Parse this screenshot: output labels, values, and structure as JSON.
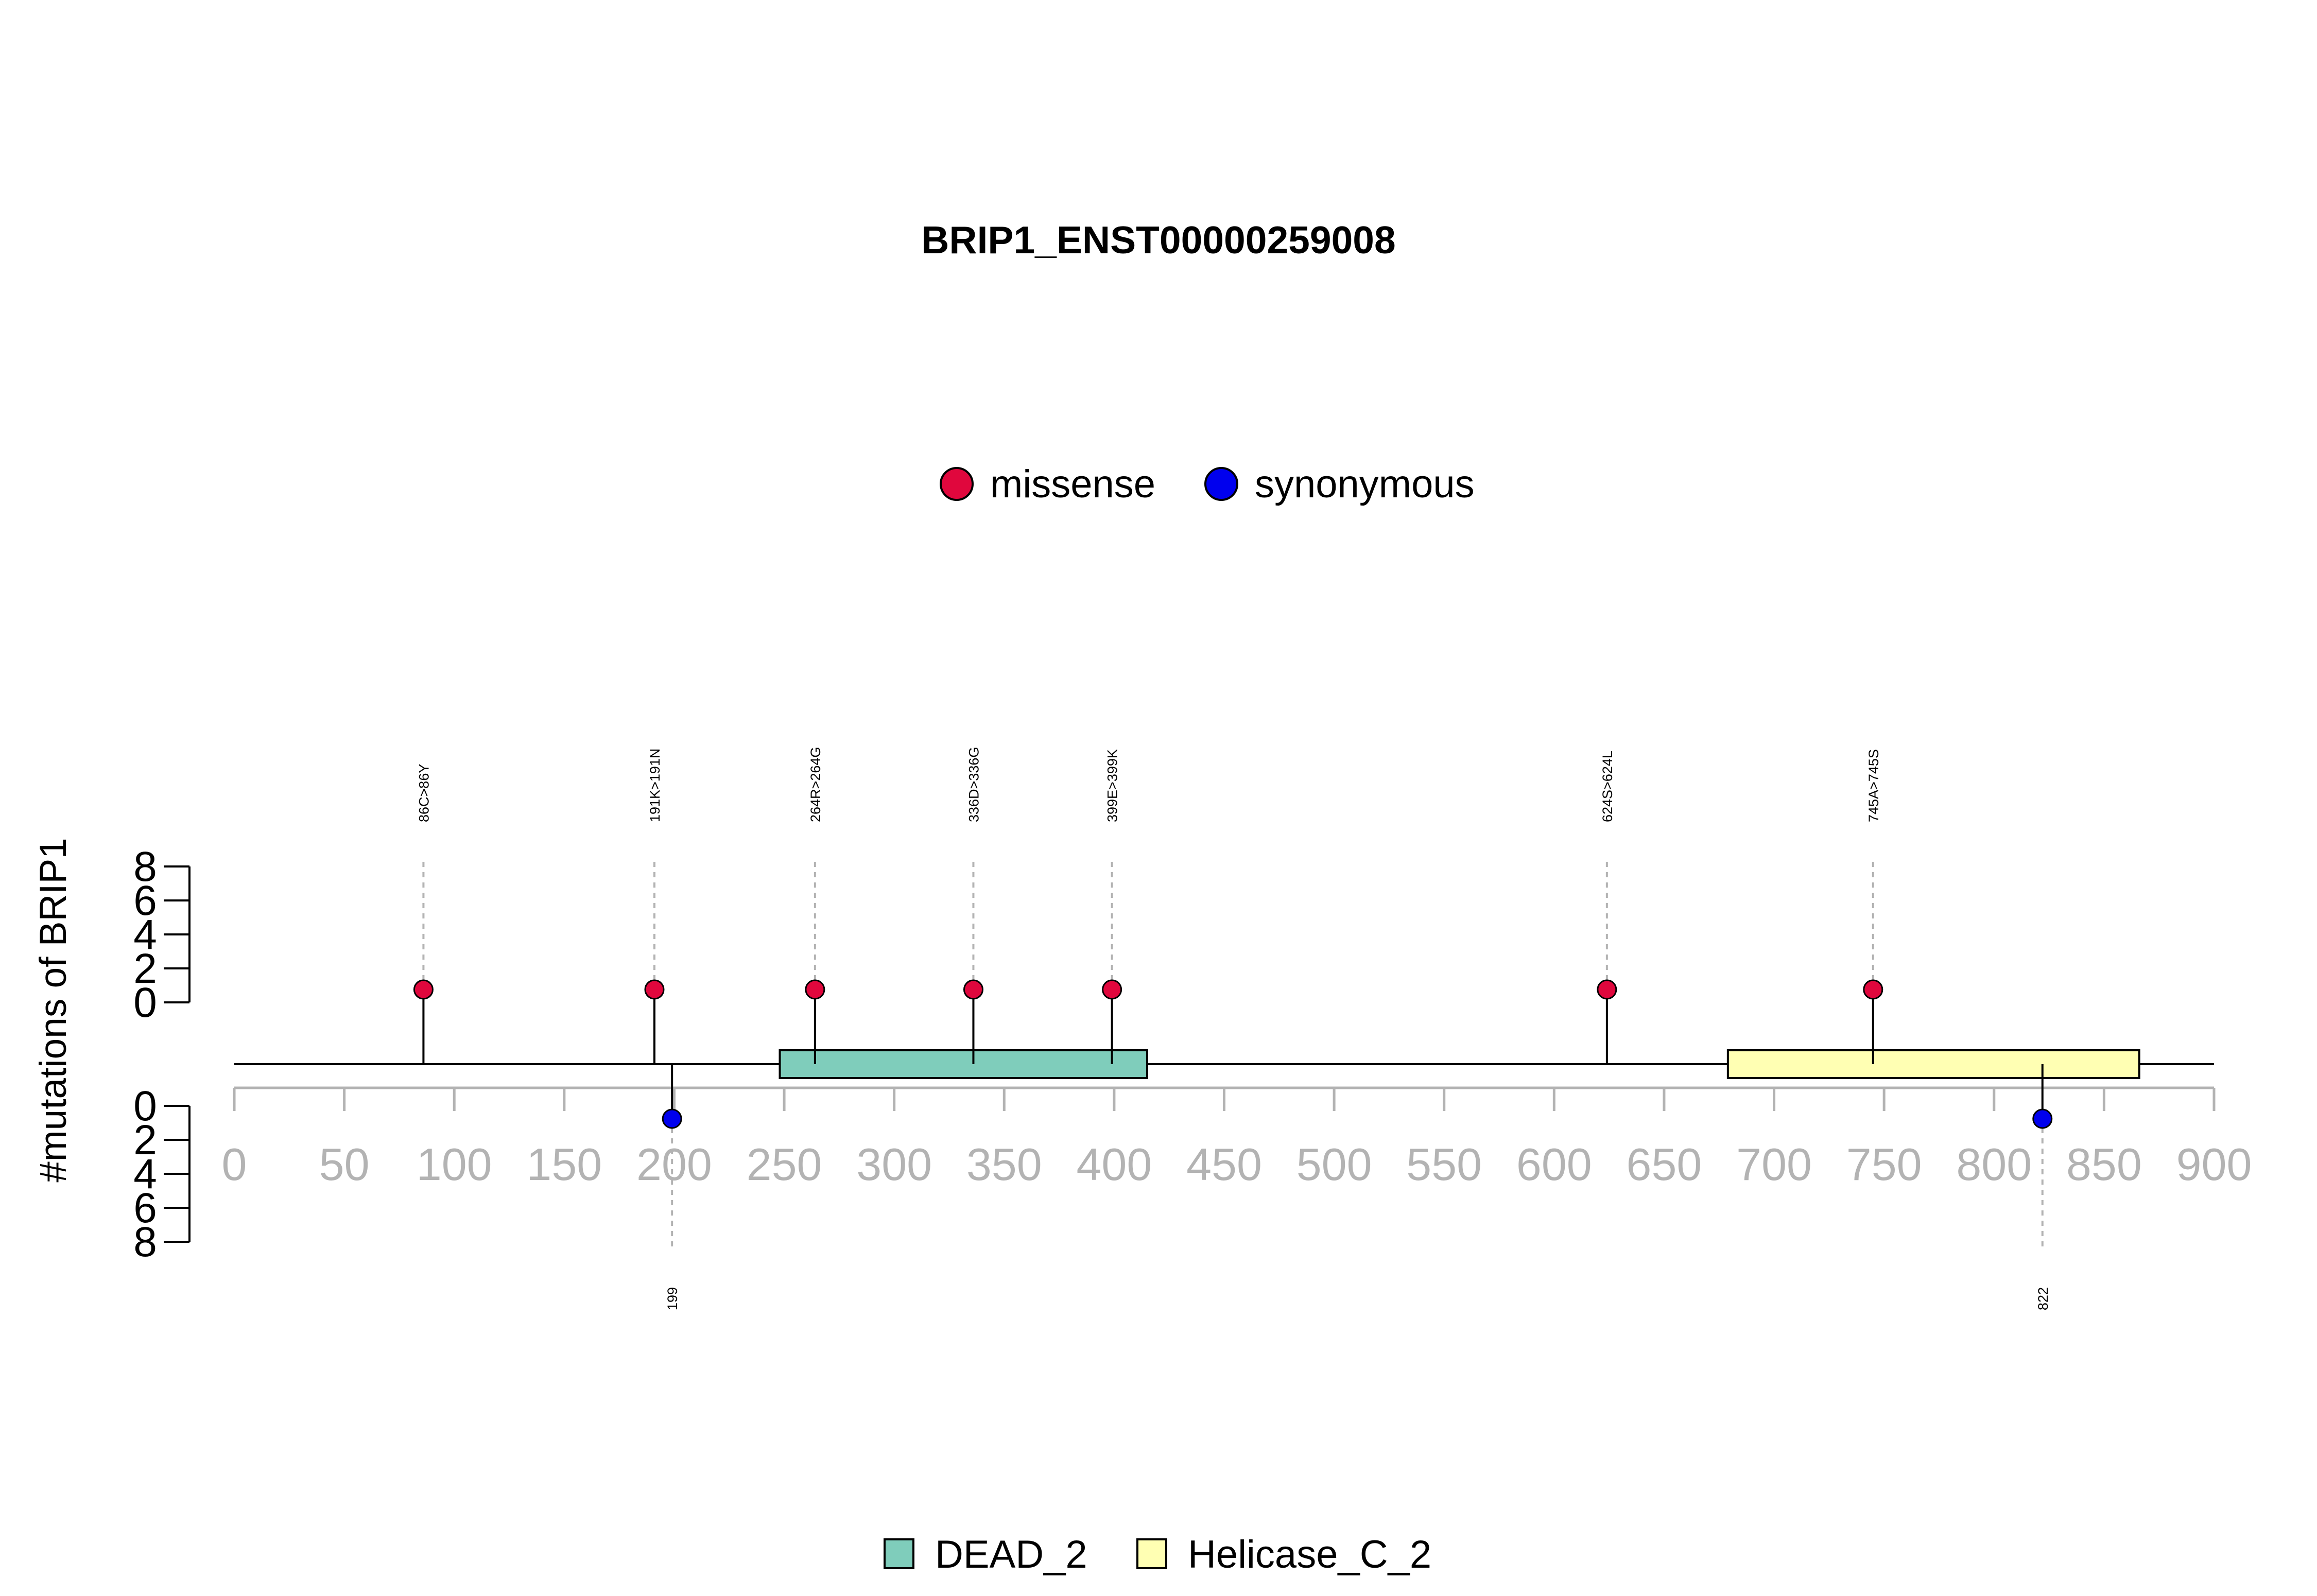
{
  "chart_data": {
    "type": "lollipop",
    "title": "BRIP1_ENST00000259008",
    "ylabel": "#mutations of BRIP1",
    "xlim": [
      0,
      900
    ],
    "x_ticks": [
      0,
      50,
      100,
      150,
      200,
      250,
      300,
      350,
      400,
      450,
      500,
      550,
      600,
      650,
      700,
      750,
      800,
      850,
      900
    ],
    "y_ticks_upper": [
      0,
      2,
      4,
      6,
      8
    ],
    "y_ticks_lower": [
      0,
      2,
      4,
      6,
      8
    ],
    "legend_mutation": [
      {
        "name": "missense",
        "color": "#E0073D"
      },
      {
        "name": "synonymous",
        "color": "#0000EE"
      }
    ],
    "legend_domain": [
      {
        "name": "DEAD_2",
        "color": "#7FCDBB"
      },
      {
        "name": "Helicase_C_2",
        "color": "#FFFFB3"
      }
    ],
    "domains": [
      {
        "name": "DEAD_2",
        "start": 248,
        "end": 415,
        "color": "#7FCDBB"
      },
      {
        "name": "Helicase_C_2",
        "start": 679,
        "end": 866,
        "color": "#FFFFB3"
      }
    ],
    "mutations": [
      {
        "position": 86,
        "label": "86C>86Y",
        "type": "missense",
        "count": 1,
        "side": "top"
      },
      {
        "position": 191,
        "label": "191K>191N",
        "type": "missense",
        "count": 1,
        "side": "top"
      },
      {
        "position": 264,
        "label": "264R>264G",
        "type": "missense",
        "count": 1,
        "side": "top"
      },
      {
        "position": 336,
        "label": "336D>336G",
        "type": "missense",
        "count": 1,
        "side": "top"
      },
      {
        "position": 399,
        "label": "399E>399K",
        "type": "missense",
        "count": 1,
        "side": "top"
      },
      {
        "position": 624,
        "label": "624S>624L",
        "type": "missense",
        "count": 1,
        "side": "top"
      },
      {
        "position": 745,
        "label": "745A>745S",
        "type": "missense",
        "count": 1,
        "side": "top"
      },
      {
        "position": 199,
        "label": "199",
        "type": "synonymous",
        "count": 1,
        "side": "bottom"
      },
      {
        "position": 822,
        "label": "822",
        "type": "synonymous",
        "count": 1,
        "side": "bottom"
      }
    ]
  }
}
